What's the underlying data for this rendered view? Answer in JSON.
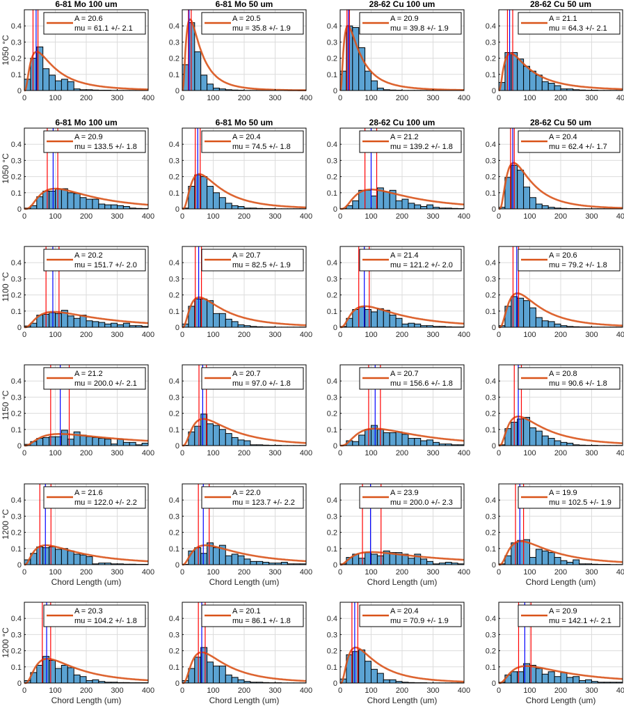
{
  "chart_data": {
    "type": "histogram-grid",
    "rows": 6,
    "cols": 4,
    "xlim": [
      0,
      400
    ],
    "ylim": [
      0,
      0.5
    ],
    "xticks": [
      0,
      100,
      200,
      300,
      400
    ],
    "yticks": [
      0,
      0.1,
      0.2,
      0.3,
      0.4
    ],
    "xlabel": "Chord Length (um)",
    "bin_width": 20,
    "colors": {
      "bar": "#5ba3d3",
      "fit": "#d95319",
      "mean_line": "#0000ff",
      "ci_line": "#ff0000",
      "grid": "#dcdcdc"
    },
    "row_labels": [
      "1050 °C",
      "1050 °C",
      "1100 °C",
      "1150 °C",
      "1200 °C",
      "1200 °C"
    ],
    "panels": [
      {
        "title": "6-81 Mo 100 um",
        "A": "20.6",
        "mu": "61.1",
        "err": "2.1",
        "peak": 40,
        "peakY": 0.24,
        "mean": 38,
        "ci": [
          28,
          44
        ],
        "bins": [
          0.07,
          0.2,
          0.27,
          0.135,
          0.095,
          0.06,
          0.07,
          0.055,
          0.01,
          0.005,
          0.005,
          0.003,
          0.002,
          0.002,
          0.001,
          0.001,
          0.001,
          0.001,
          0.001,
          0.001
        ]
      },
      {
        "title": "6-81 Mo 50 um",
        "A": "20.5",
        "mu": "35.8",
        "err": "1.9",
        "peak": 25,
        "peakY": 0.44,
        "mean": 22,
        "ci": [
          20,
          29
        ],
        "bins": [
          0.16,
          0.42,
          0.24,
          0.095,
          0.04,
          0.015,
          0.01,
          0.005,
          0.003,
          0.002,
          0.001,
          0.001,
          0.001,
          0.001,
          0.001,
          0.001,
          0.001,
          0.001,
          0.001,
          0.001
        ]
      },
      {
        "title": "28-62 Cu 100 um",
        "A": "20.9",
        "mu": "39.8",
        "err": "1.9",
        "peak": 25,
        "peakY": 0.4,
        "mean": 27,
        "ci": [
          22,
          30
        ],
        "bins": [
          0.12,
          0.4,
          0.39,
          0.265,
          0.12,
          0.06,
          0.015,
          0.005,
          0.003,
          0.002,
          0.001,
          0.001,
          0.001,
          0.001,
          0.001,
          0.001,
          0.001,
          0.001,
          0.001,
          0.001
        ]
      },
      {
        "title": "28-62 Cu 50 um",
        "A": "21.1",
        "mu": "64.3",
        "err": "2.1",
        "peak": 38,
        "peakY": 0.23,
        "mean": 35,
        "ci": [
          28,
          45
        ],
        "bins": [
          0.05,
          0.235,
          0.235,
          0.195,
          0.15,
          0.12,
          0.095,
          0.055,
          0.045,
          0.03,
          0.01,
          0.01,
          0.005,
          0.003,
          0.002,
          0.002,
          0.001,
          0.001,
          0.001,
          0.001
        ]
      },
      {
        "title": "6-81 Mo 100 um",
        "A": "20.9",
        "mu": "133.5",
        "err": "1.8",
        "peak": 100,
        "peakY": 0.125,
        "mean": 93,
        "ci": [
          74,
          108
        ],
        "bins": [
          0.005,
          0.02,
          0.075,
          0.11,
          0.11,
          0.125,
          0.125,
          0.1,
          0.095,
          0.07,
          0.06,
          0.06,
          0.03,
          0.025,
          0.025,
          0.02,
          0.015,
          0.005,
          0.003,
          0.002
        ]
      },
      {
        "title": "6-81 Mo 50 um",
        "A": "20.4",
        "mu": "74.5",
        "err": "1.8",
        "peak": 55,
        "peakY": 0.215,
        "mean": 50,
        "ci": [
          42,
          58
        ],
        "bins": [
          0.005,
          0.14,
          0.21,
          0.2,
          0.14,
          0.1,
          0.07,
          0.035,
          0.02,
          0.015,
          0.005,
          0.005,
          0.003,
          0.002,
          0.002,
          0.001,
          0.001,
          0.001,
          0.001,
          0.001
        ]
      },
      {
        "title": "28-62 Cu 100 um",
        "A": "21.2",
        "mu": "139.2",
        "err": "1.8",
        "peak": 100,
        "peakY": 0.12,
        "mean": 100,
        "ci": [
          80,
          118
        ],
        "bins": [
          0.002,
          0.02,
          0.05,
          0.115,
          0.115,
          0.08,
          0.13,
          0.105,
          0.115,
          0.05,
          0.06,
          0.035,
          0.025,
          0.015,
          0.025,
          0.01,
          0.005,
          0.005,
          0.003,
          0.002
        ]
      },
      {
        "title": "28-62 Cu 50 um",
        "A": "20.4",
        "mu": "62.4",
        "err": "1.7",
        "peak": 48,
        "peakY": 0.285,
        "mean": 45,
        "ci": [
          38,
          50
        ],
        "bins": [
          0.01,
          0.195,
          0.27,
          0.24,
          0.135,
          0.07,
          0.03,
          0.02,
          0.01,
          0.005,
          0.003,
          0.002,
          0.002,
          0.001,
          0.001,
          0.001,
          0.001,
          0.001,
          0.001,
          0.001
        ]
      },
      {
        "title": "",
        "A": "20.2",
        "mu": "151.7",
        "err": "2.0",
        "peak": 95,
        "peakY": 0.095,
        "mean": 92,
        "ci": [
          70,
          112
        ],
        "bins": [
          0.008,
          0.025,
          0.075,
          0.08,
          0.09,
          0.085,
          0.105,
          0.07,
          0.055,
          0.075,
          0.04,
          0.035,
          0.03,
          0.02,
          0.025,
          0.015,
          0.025,
          0.01,
          0.01,
          0.005
        ]
      },
      {
        "title": "",
        "A": "20.7",
        "mu": "82.5",
        "err": "1.9",
        "peak": 55,
        "peakY": 0.185,
        "mean": 53,
        "ci": [
          42,
          62
        ],
        "bins": [
          0.02,
          0.13,
          0.175,
          0.175,
          0.165,
          0.085,
          0.085,
          0.05,
          0.035,
          0.015,
          0.01,
          0.005,
          0.003,
          0.002,
          0.002,
          0.001,
          0.001,
          0.001,
          0.001,
          0.001
        ]
      },
      {
        "title": "",
        "A": "21.4",
        "mu": "121.2",
        "err": "2.0",
        "peak": 80,
        "peakY": 0.13,
        "mean": 78,
        "ci": [
          60,
          94
        ],
        "bins": [
          0.005,
          0.055,
          0.11,
          0.125,
          0.11,
          0.095,
          0.115,
          0.105,
          0.075,
          0.055,
          0.02,
          0.025,
          0.02,
          0.01,
          0.01,
          0.005,
          0.005,
          0.003,
          0.002,
          0.002
        ]
      },
      {
        "title": "",
        "A": "20.6",
        "mu": "79.2",
        "err": "1.8",
        "peak": 60,
        "peakY": 0.21,
        "mean": 58,
        "ci": [
          46,
          64
        ],
        "bins": [
          0.01,
          0.13,
          0.19,
          0.18,
          0.165,
          0.12,
          0.06,
          0.04,
          0.035,
          0.02,
          0.01,
          0.005,
          0.003,
          0.002,
          0.002,
          0.001,
          0.001,
          0.001,
          0.001,
          0.001
        ]
      },
      {
        "title": "",
        "A": "21.2",
        "mu": "200.0",
        "err": "2.1",
        "peak": 115,
        "peakY": 0.072,
        "mean": 116,
        "ci": [
          85,
          145
        ],
        "bins": [
          0.008,
          0.025,
          0.045,
          0.05,
          0.055,
          0.055,
          0.095,
          0.04,
          0.085,
          0.065,
          0.055,
          0.05,
          0.045,
          0.04,
          0.01,
          0.04,
          0.02,
          0.02,
          0.005,
          0.015
        ]
      },
      {
        "title": "",
        "A": "20.7",
        "mu": "97.0",
        "err": "1.8",
        "peak": 68,
        "peakY": 0.165,
        "mean": 66,
        "ci": [
          54,
          78
        ],
        "bins": [
          0.002,
          0.085,
          0.12,
          0.195,
          0.135,
          0.125,
          0.1,
          0.075,
          0.05,
          0.035,
          0.03,
          0.005,
          0.005,
          0.003,
          0.002,
          0.002,
          0.001,
          0.001,
          0.001,
          0.001
        ]
      },
      {
        "title": "",
        "A": "20.7",
        "mu": "156.6",
        "err": "1.8",
        "peak": 112,
        "peakY": 0.105,
        "mean": 113,
        "ci": [
          92,
          130
        ],
        "bins": [
          0.002,
          0.03,
          0.025,
          0.065,
          0.1,
          0.125,
          0.1,
          0.08,
          0.08,
          0.085,
          0.07,
          0.045,
          0.045,
          0.03,
          0.035,
          0.02,
          0.01,
          0.01,
          0.005,
          0.005
        ]
      },
      {
        "title": "",
        "A": "20.8",
        "mu": "90.6",
        "err": "1.8",
        "peak": 63,
        "peakY": 0.18,
        "mean": 63,
        "ci": [
          50,
          73
        ],
        "bins": [
          0.005,
          0.105,
          0.145,
          0.165,
          0.175,
          0.11,
          0.09,
          0.06,
          0.045,
          0.03,
          0.02,
          0.015,
          0.005,
          0.003,
          0.002,
          0.002,
          0.001,
          0.001,
          0.001,
          0.001
        ]
      },
      {
        "title": "",
        "A": "21.6",
        "mu": "122.0",
        "err": "2.2",
        "peak": 70,
        "peakY": 0.12,
        "mean": 68,
        "ci": [
          50,
          86
        ],
        "bins": [
          0.03,
          0.07,
          0.11,
          0.105,
          0.11,
          0.095,
          0.1,
          0.085,
          0.065,
          0.06,
          0.05,
          0.005,
          0.01,
          0.01,
          0.005,
          0.005,
          0.003,
          0.003,
          0.002,
          0.002
        ]
      },
      {
        "title": "",
        "A": "22.0",
        "mu": "123.7",
        "err": "2.2",
        "peak": 75,
        "peakY": 0.12,
        "mean": 68,
        "ci": [
          52,
          87
        ],
        "bins": [
          0.002,
          0.085,
          0.105,
          0.07,
          0.135,
          0.105,
          0.12,
          0.055,
          0.065,
          0.055,
          0.035,
          0.02,
          0.02,
          0.015,
          0.01,
          0.01,
          0.015,
          0.005,
          0.005,
          0.005
        ]
      },
      {
        "title": "",
        "A": "23.9",
        "mu": "200.0",
        "err": "2.3",
        "peak": 100,
        "peakY": 0.078,
        "mean": 98,
        "ci": [
          72,
          132
        ],
        "bins": [
          0.005,
          0.045,
          0.065,
          0.04,
          0.075,
          0.065,
          0.055,
          0.085,
          0.075,
          0.075,
          0.065,
          0.04,
          0.065,
          0.035,
          0.02,
          0.005,
          0.01,
          0.015,
          0.01,
          0.005
        ]
      },
      {
        "title": "",
        "A": "19.9",
        "mu": "102.5",
        "err": "1.9",
        "peak": 72,
        "peakY": 0.145,
        "mean": 68,
        "ci": [
          54,
          80
        ],
        "bins": [
          0.005,
          0.055,
          0.135,
          0.15,
          0.155,
          0.045,
          0.095,
          0.085,
          0.075,
          0.045,
          0.025,
          0.015,
          0.03,
          0.005,
          0.005,
          0.003,
          0.002,
          0.002,
          0.001,
          0.001
        ]
      },
      {
        "title": "",
        "A": "20.3",
        "mu": "104.2",
        "err": "1.8",
        "peak": 75,
        "peakY": 0.15,
        "mean": 72,
        "ci": [
          58,
          85
        ],
        "bins": [
          0.015,
          0.065,
          0.11,
          0.165,
          0.14,
          0.09,
          0.11,
          0.095,
          0.05,
          0.04,
          0.015,
          0.02,
          0.01,
          0.005,
          0.005,
          0.003,
          0.003,
          0.002,
          0.002,
          0.002
        ]
      },
      {
        "title": "",
        "A": "20.1",
        "mu": "86.1",
        "err": "1.8",
        "peak": 63,
        "peakY": 0.19,
        "mean": 63,
        "ci": [
          52,
          74
        ],
        "bins": [
          0.015,
          0.09,
          0.16,
          0.22,
          0.13,
          0.105,
          0.105,
          0.05,
          0.035,
          0.02,
          0.01,
          0.005,
          0.005,
          0.003,
          0.002,
          0.002,
          0.001,
          0.001,
          0.001,
          0.001
        ]
      },
      {
        "title": "",
        "A": "20.4",
        "mu": "70.9",
        "err": "1.9",
        "peak": 50,
        "peakY": 0.22,
        "mean": 47,
        "ci": [
          38,
          57
        ],
        "bins": [
          0.025,
          0.175,
          0.195,
          0.205,
          0.135,
          0.085,
          0.06,
          0.02,
          0.02,
          0.01,
          0.005,
          0.003,
          0.002,
          0.002,
          0.001,
          0.001,
          0.001,
          0.001,
          0.001,
          0.001
        ]
      },
      {
        "title": "",
        "A": "20.9",
        "mu": "142.1",
        "err": "2.1",
        "peak": 90,
        "peakY": 0.105,
        "mean": 84,
        "ci": [
          64,
          104
        ],
        "bins": [
          0.005,
          0.05,
          0.07,
          0.07,
          0.12,
          0.11,
          0.09,
          0.055,
          0.07,
          0.04,
          0.065,
          0.035,
          0.04,
          0.015,
          0.02,
          0.01,
          0.005,
          0.005,
          0.005,
          0.005
        ]
      }
    ]
  }
}
